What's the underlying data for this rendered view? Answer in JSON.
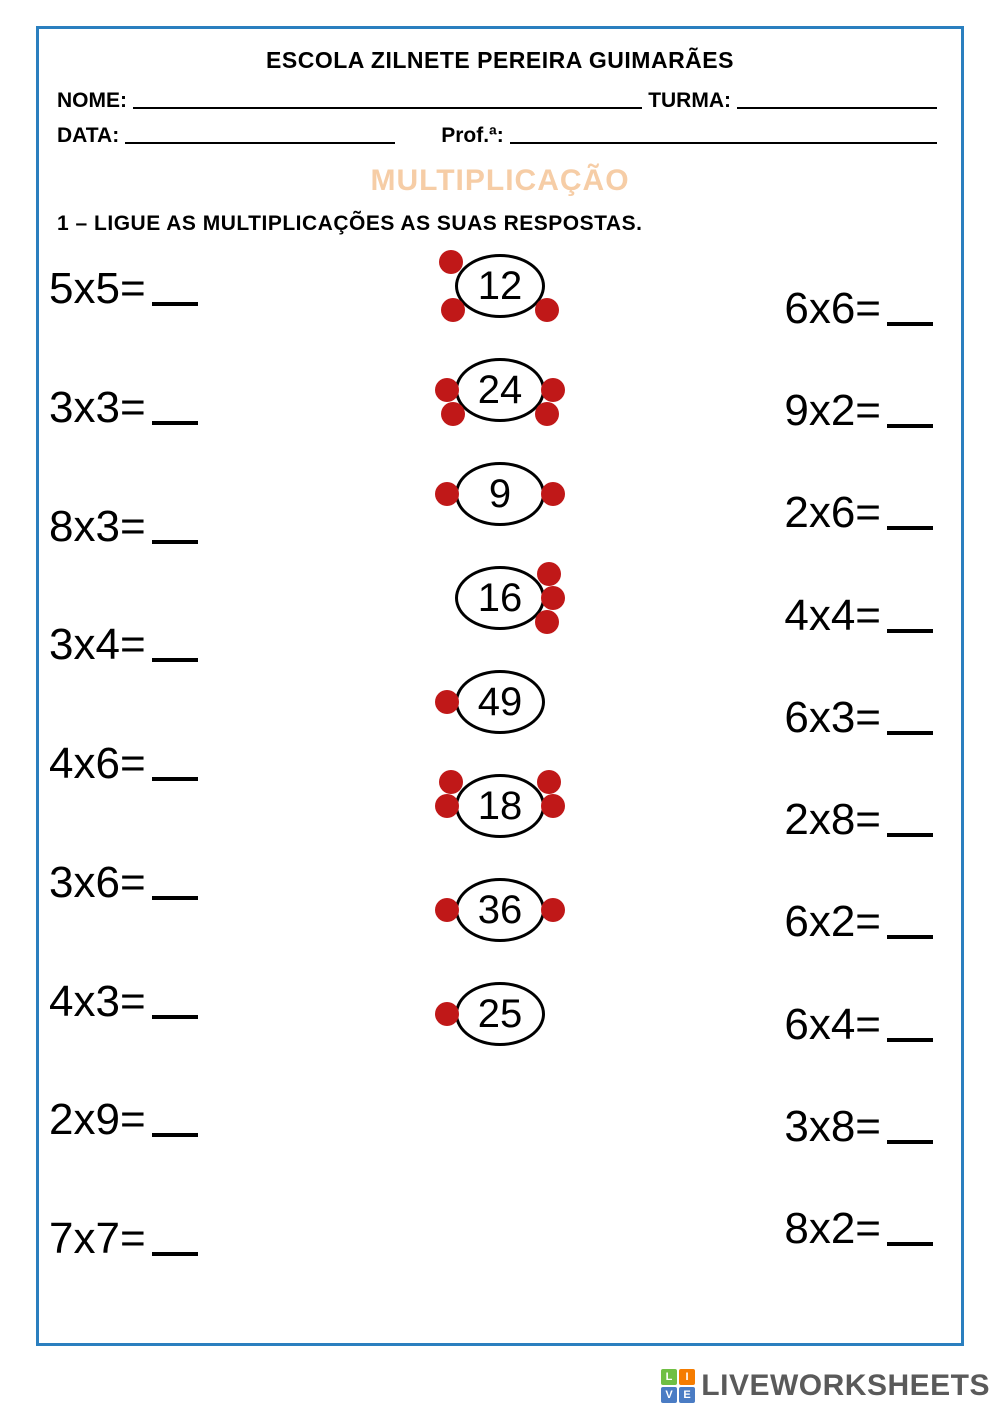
{
  "header": {
    "school": "ESCOLA ZILNETE PEREIRA GUIMARÃES",
    "name_label": "NOME:",
    "class_label": "TURMA:",
    "date_label": "DATA:",
    "teacher_label": "Prof.ª:"
  },
  "subject": {
    "text": "MULTIPLICAÇÃO",
    "color": "#f6cda6"
  },
  "instruction": "1 – LIGUE AS MULTIPLICAÇÕES AS SUAS RESPOSTAS.",
  "left_equations": [
    "5x5=",
    "3x3=",
    "8x3=",
    "3x4=",
    "4x6=",
    "3x6=",
    "4x3=",
    "2x9=",
    "7x7="
  ],
  "right_equations": [
    "6x6=",
    "9x2=",
    "2x6=",
    "4x4=",
    "6x3=",
    "2x8=",
    "6x2=",
    "6x4=",
    "3x8=",
    "8x2="
  ],
  "answers": [
    {
      "value": "12",
      "dots": [
        "tl",
        "bl",
        "br"
      ]
    },
    {
      "value": "24",
      "dots": [
        "ml",
        "mr",
        "bl",
        "br"
      ]
    },
    {
      "value": "9",
      "dots": [
        "ml",
        "mr"
      ]
    },
    {
      "value": "16",
      "dots": [
        "tr",
        "mr",
        "br"
      ]
    },
    {
      "value": "49",
      "dots": [
        "ml"
      ]
    },
    {
      "value": "18",
      "dots": [
        "tl",
        "ml",
        "tr",
        "mr"
      ]
    },
    {
      "value": "36",
      "dots": [
        "ml",
        "mr"
      ]
    },
    {
      "value": "25",
      "dots": [
        "ml"
      ]
    }
  ],
  "colors": {
    "frame_border": "#2a7fbf",
    "dot": "#c01818",
    "text": "#000000",
    "watermark_text": "#5a5a5a"
  },
  "watermark": {
    "text": "LIVEWORKSHEETS",
    "badge": [
      "L",
      "I",
      "V",
      "E"
    ],
    "badge_colors": [
      "#6fbf44",
      "#f57c00",
      "#4a7cc4",
      "#4a7cc4"
    ]
  }
}
